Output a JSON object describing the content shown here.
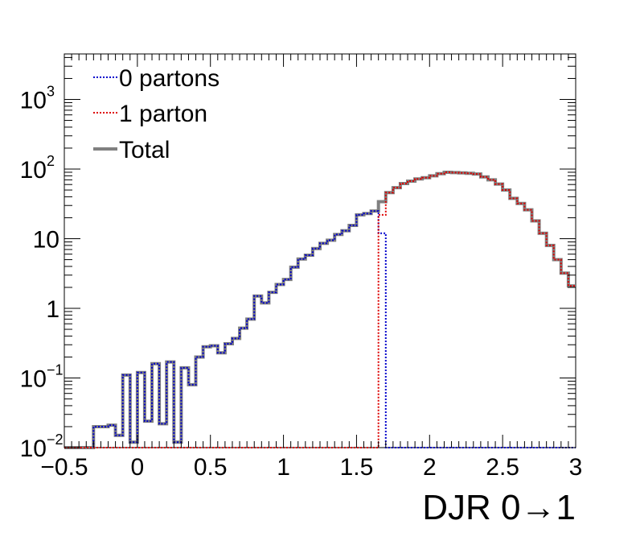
{
  "chart_data": {
    "type": "line",
    "title": "",
    "xlabel": "DJR 0→1",
    "ylabel": "",
    "xlim": [
      -0.5,
      3.0
    ],
    "ylim": [
      0.01,
      4500
    ],
    "yscale": "log",
    "bin_edges_start": -0.5,
    "bin_width": 0.05,
    "grid": false,
    "legend_position": "top-left",
    "x_ticks": [
      {
        "value": -0.5,
        "label": "−0.5"
      },
      {
        "value": 0,
        "label": "0"
      },
      {
        "value": 0.5,
        "label": "0.5"
      },
      {
        "value": 1,
        "label": "1"
      },
      {
        "value": 1.5,
        "label": "1.5"
      },
      {
        "value": 2,
        "label": "2"
      },
      {
        "value": 2.5,
        "label": "2.5"
      },
      {
        "value": 3,
        "label": "3"
      }
    ],
    "y_ticks": [
      {
        "value": 0.01,
        "base": "10",
        "exp": "−2"
      },
      {
        "value": 0.1,
        "base": "10",
        "exp": "−1"
      },
      {
        "value": 1,
        "base": "1",
        "exp": ""
      },
      {
        "value": 10,
        "base": "10",
        "exp": ""
      },
      {
        "value": 100,
        "base": "10",
        "exp": "2"
      },
      {
        "value": 1000,
        "base": "10",
        "exp": "3"
      }
    ],
    "series": [
      {
        "name": "0 partons",
        "color": "#0000cc",
        "style": "dotted",
        "values": [
          0,
          0,
          0,
          0,
          0.02,
          0.02,
          0.021,
          0.015,
          0.11,
          0.012,
          0.12,
          0.024,
          0.16,
          0.022,
          0.17,
          0.012,
          0.14,
          0.08,
          0.2,
          0.28,
          0.29,
          0.23,
          0.31,
          0.37,
          0.52,
          0.7,
          1.5,
          1.2,
          1.7,
          2.2,
          2.6,
          3.9,
          5.1,
          5.8,
          7.2,
          8.6,
          9.5,
          11.5,
          13,
          15.5,
          22,
          23,
          25,
          12,
          0,
          0,
          0,
          0,
          0,
          0,
          0,
          0,
          0,
          0,
          0,
          0,
          0,
          0,
          0,
          0,
          0,
          0,
          0,
          0,
          0,
          0,
          0,
          0,
          0,
          0
        ]
      },
      {
        "name": "1 parton",
        "color": "#dd0000",
        "style": "dotted",
        "values": [
          0,
          0,
          0,
          0,
          0,
          0,
          0,
          0,
          0,
          0,
          0,
          0,
          0,
          0,
          0,
          0,
          0,
          0,
          0,
          0,
          0,
          0,
          0,
          0,
          0,
          0,
          0,
          0,
          0,
          0,
          0,
          0,
          0,
          0,
          0,
          0,
          0,
          0,
          0,
          0,
          0,
          0,
          0,
          22,
          46,
          54,
          62,
          67,
          72,
          75,
          80,
          86,
          90,
          89,
          88,
          87,
          85,
          77,
          70,
          61,
          50,
          38,
          32,
          26,
          18,
          12,
          8,
          5,
          3.2,
          2.1
        ]
      },
      {
        "name": "Total",
        "color": "#808080",
        "style": "solid",
        "values": [
          0,
          0,
          0,
          0,
          0.02,
          0.02,
          0.021,
          0.015,
          0.11,
          0.012,
          0.12,
          0.024,
          0.16,
          0.022,
          0.17,
          0.012,
          0.14,
          0.08,
          0.2,
          0.28,
          0.29,
          0.23,
          0.31,
          0.37,
          0.52,
          0.7,
          1.5,
          1.2,
          1.7,
          2.2,
          2.6,
          3.9,
          5.1,
          5.8,
          7.2,
          8.6,
          9.5,
          11.5,
          13,
          15.5,
          22,
          23,
          25,
          34,
          46,
          54,
          62,
          67,
          72,
          75,
          80,
          86,
          90,
          89,
          88,
          87,
          85,
          77,
          70,
          61,
          50,
          38,
          32,
          26,
          18,
          12,
          8,
          5,
          3.2,
          2.1
        ]
      }
    ]
  }
}
